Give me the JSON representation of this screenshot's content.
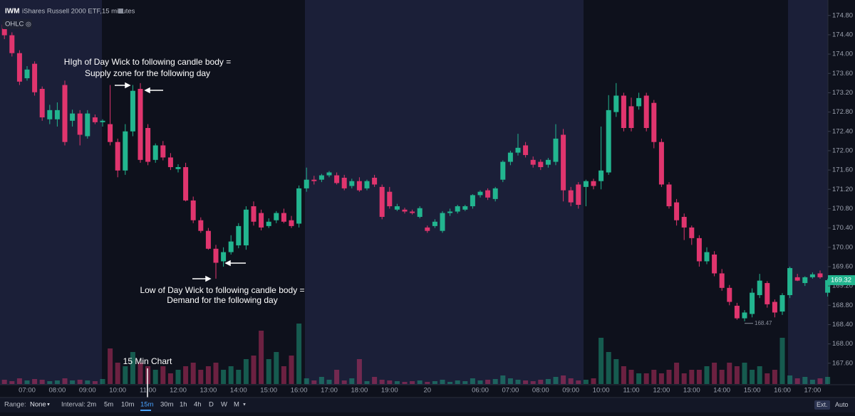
{
  "header": {
    "symbol": "IWM",
    "name": "iShares Russell 2000 ETF,15 minutes",
    "study": "OHLC"
  },
  "chart_data": {
    "type": "candlestick",
    "up_color": "#22b58f",
    "down_color": "#e0356e",
    "grid": false,
    "ylim": [
      167.17,
      175.12
    ],
    "yticks": [
      {
        "value": 167.6,
        "label": "167.60"
      },
      {
        "value": 168,
        "label": "168.00"
      },
      {
        "value": 168.4,
        "label": "168.40"
      },
      {
        "value": 168.8,
        "label": "168.80"
      },
      {
        "value": 169.2,
        "label": "169.20"
      },
      {
        "value": 169.6,
        "label": "169.60"
      },
      {
        "value": 170,
        "label": "170.00"
      },
      {
        "value": 170.4,
        "label": "170.40"
      },
      {
        "value": 170.8,
        "label": "170.80"
      },
      {
        "value": 171.2,
        "label": "171.20"
      },
      {
        "value": 171.6,
        "label": "171.60"
      },
      {
        "value": 172,
        "label": "172.00"
      },
      {
        "value": 172.4,
        "label": "172.40"
      },
      {
        "value": 172.8,
        "label": "172.80"
      },
      {
        "value": 173.2,
        "label": "173.20"
      },
      {
        "value": 173.6,
        "label": "173.60"
      },
      {
        "value": 174,
        "label": "174.00"
      },
      {
        "value": 174.4,
        "label": "174.40"
      },
      {
        "value": 174.8,
        "label": "174.80"
      }
    ],
    "categories": [
      null,
      null,
      null,
      "07:00",
      null,
      null,
      null,
      "08:00",
      null,
      null,
      null,
      "09:00",
      null,
      null,
      null,
      "10:00",
      null,
      null,
      null,
      "11:00",
      null,
      null,
      null,
      "12:00",
      null,
      null,
      null,
      "13:00",
      null,
      null,
      null,
      "14:00",
      null,
      null,
      null,
      "15:00",
      null,
      null,
      null,
      "16:00",
      null,
      null,
      null,
      "17:00",
      null,
      null,
      null,
      "18:00",
      null,
      null,
      null,
      "19:00",
      null,
      null,
      null,
      null,
      "20",
      null,
      null,
      null,
      null,
      null,
      null,
      "06:00",
      null,
      null,
      null,
      "07:00",
      null,
      null,
      null,
      "08:00",
      null,
      null,
      null,
      "09:00",
      null,
      null,
      null,
      "10:00",
      null,
      null,
      null,
      "11:00",
      null,
      null,
      null,
      "12:00",
      null,
      null,
      null,
      "13:00",
      null,
      null,
      null,
      "14:00",
      null,
      null,
      null,
      "15:00",
      null,
      null,
      null,
      "16:00",
      null,
      null,
      null,
      "17:00",
      null,
      null
    ],
    "open": [
      174.61,
      174.39,
      174.02,
      173.5,
      173.8,
      173.28,
      172.65,
      172.65,
      173.36,
      172.62,
      172.77,
      172.3,
      172.69,
      172.59,
      172.55,
      172.18,
      171.59,
      172.4,
      173.28,
      172.47,
      171.81,
      172.11,
      171.86,
      171.62,
      171.66,
      170.97,
      170.56,
      170.34,
      169.97,
      169.71,
      169.9,
      170.04,
      170.04,
      170.85,
      170.71,
      170.44,
      170.56,
      170.71,
      170.56,
      170.49,
      171.22,
      171.4,
      171.4,
      171.49,
      171.49,
      171.44,
      171.27,
      171.37,
      171.22,
      171.44,
      171.25,
      171.15,
      170.78,
      170.78,
      170.74,
      170.63,
      170.41,
      170.44,
      170.34,
      170.71,
      170.74,
      170.78,
      170.85,
      171.08,
      171.18,
      171,
      171.4,
      171.77,
      171.96,
      172.11,
      171.81,
      171.77,
      171.71,
      171.77,
      172.33,
      171.18,
      171.3,
      171.25,
      171.37,
      171.37,
      171.55,
      172.8,
      173.14,
      172.92,
      172.92,
      173.14,
      172.99,
      172.18,
      171.3,
      170.93,
      170.63,
      170.41,
      170.19,
      169.71,
      169.85,
      169.46,
      169.16,
      168.79,
      168.53,
      168.62,
      169.01,
      169.26,
      168.87,
      168.67,
      169.01,
      169.38,
      169.26,
      169.38,
      169.46,
      169.06
    ],
    "high": [
      174.68,
      174.45,
      174.08,
      173.75,
      173.85,
      173.33,
      172.95,
      173,
      173.45,
      172.85,
      172.84,
      172.84,
      172.75,
      172.65,
      173.36,
      172.25,
      172.55,
      173.36,
      173.4,
      172.55,
      172.15,
      172.2,
      171.95,
      171.72,
      171.75,
      171.05,
      170.62,
      170.4,
      170.05,
      170,
      170.25,
      170.5,
      170.85,
      170.95,
      170.78,
      170.6,
      170.75,
      170.8,
      170.65,
      171.28,
      171.65,
      171.48,
      171.52,
      171.58,
      171.55,
      171.5,
      171.42,
      171.45,
      171.4,
      171.5,
      171.3,
      171.25,
      170.9,
      170.82,
      170.78,
      170.85,
      170.45,
      170.58,
      170.75,
      170.8,
      170.88,
      170.88,
      171.1,
      171.18,
      171.22,
      171.25,
      171.8,
      172,
      172.35,
      172.18,
      171.88,
      171.82,
      171.85,
      172.55,
      172.45,
      171.25,
      171.35,
      171.4,
      171.42,
      172.5,
      173.15,
      173.4,
      173.2,
      173.1,
      173.2,
      173.2,
      173.05,
      172.25,
      171.35,
      171,
      170.7,
      170.45,
      170.25,
      170,
      169.92,
      169.55,
      169.22,
      168.85,
      168.7,
      169.15,
      169.45,
      169.3,
      168.92,
      169.05,
      169.6,
      169.45,
      169.4,
      169.48,
      169.52,
      169.35
    ],
    "low": [
      174.31,
      173.95,
      173.36,
      173.45,
      173.14,
      172.62,
      172.55,
      172.5,
      172.11,
      172.5,
      172.11,
      172.25,
      172.55,
      172.5,
      172.11,
      171.45,
      171.5,
      172.3,
      171.75,
      171.7,
      171.75,
      171.8,
      171.6,
      171.55,
      170.95,
      170.5,
      170.3,
      169.95,
      169.35,
      169.6,
      169.85,
      169.98,
      169.95,
      170.45,
      170.35,
      170.4,
      170.5,
      170.5,
      170.4,
      170.41,
      171.15,
      171.3,
      171.35,
      171.45,
      171.3,
      171.18,
      171.22,
      171.15,
      171.18,
      171.25,
      170.58,
      170.8,
      170.75,
      170.7,
      170.68,
      170.6,
      170.3,
      170.4,
      170.3,
      170.65,
      170.7,
      170.75,
      170.8,
      171.03,
      170.98,
      170.95,
      171.35,
      171.7,
      171.9,
      171.86,
      171.65,
      171.6,
      171.65,
      171.7,
      170.95,
      170.85,
      170.8,
      170.85,
      171.2,
      171.2,
      171.5,
      172.7,
      172.4,
      172.4,
      172.85,
      172.4,
      172.05,
      171.25,
      170.8,
      170.45,
      170.15,
      170.05,
      169.6,
      169.65,
      169.4,
      169.1,
      168.8,
      168.5,
      168.47,
      168.55,
      168.95,
      168.75,
      168.55,
      168.6,
      168.95,
      169.3,
      169.2,
      169.35,
      169.35,
      168.98
    ],
    "close": [
      174.39,
      174.02,
      173.43,
      173.68,
      173.21,
      172.69,
      172.84,
      172.84,
      172.18,
      172.77,
      172.33,
      172.77,
      172.59,
      172.62,
      172.18,
      171.59,
      172.4,
      173.24,
      171.81,
      171.77,
      172.11,
      171.86,
      171.66,
      171.66,
      170.97,
      170.56,
      170.34,
      169.97,
      169.68,
      169.9,
      170.12,
      170.44,
      170.78,
      170.53,
      170.41,
      170.53,
      170.71,
      170.53,
      170.44,
      171.22,
      171.4,
      171.37,
      171.49,
      171.55,
      171.33,
      171.22,
      171.37,
      171.18,
      171.37,
      171.3,
      170.63,
      170.85,
      170.85,
      170.74,
      170.71,
      170.81,
      170.34,
      170.53,
      170.71,
      170.74,
      170.85,
      170.85,
      171.08,
      171.15,
      171.03,
      171.22,
      171.77,
      171.96,
      172.06,
      171.91,
      171.71,
      171.66,
      171.81,
      172.25,
      171.18,
      170.93,
      170.88,
      171.37,
      171.27,
      171.59,
      172.84,
      173.14,
      172.47,
      172.47,
      173.09,
      172.47,
      172.18,
      171.3,
      170.85,
      170.56,
      170.41,
      170.19,
      169.71,
      169.9,
      169.46,
      169.16,
      168.87,
      168.53,
      168.65,
      169.06,
      169.31,
      168.82,
      168.65,
      169.01,
      169.57,
      169.31,
      169.38,
      169.44,
      169.38,
      169.32
    ],
    "volume_lim": [
      0,
      100
    ],
    "volume": [
      6,
      4,
      8,
      5,
      7,
      6,
      4,
      5,
      8,
      5,
      6,
      5,
      4,
      7,
      50,
      30,
      25,
      45,
      30,
      25,
      20,
      25,
      15,
      20,
      25,
      30,
      20,
      25,
      30,
      20,
      25,
      20,
      35,
      40,
      75,
      35,
      45,
      25,
      40,
      85,
      8,
      5,
      10,
      6,
      20,
      5,
      8,
      35,
      4,
      10,
      6,
      5,
      4,
      3,
      4,
      5,
      3,
      4,
      6,
      3,
      5,
      4,
      8,
      5,
      6,
      7,
      12,
      8,
      6,
      5,
      4,
      6,
      7,
      10,
      12,
      8,
      5,
      6,
      8,
      65,
      45,
      35,
      25,
      20,
      15,
      15,
      20,
      15,
      20,
      30,
      15,
      20,
      20,
      25,
      30,
      20,
      30,
      25,
      30,
      20,
      25,
      15,
      20,
      65,
      12,
      8,
      10,
      6,
      8,
      10
    ],
    "last_price": {
      "value": 169.32,
      "label": "169.32"
    },
    "low_label": {
      "value": 168.47,
      "label": "168.47"
    },
    "annotations": {
      "supply": [
        "HIgh of Day Wick to following candle body =",
        "Supply zone for the following day"
      ],
      "demand": [
        "Low of Day Wick to following candle body =",
        "Demand for the following day"
      ],
      "interval_note": "15 Min Chart"
    }
  },
  "toolbar": {
    "range_label": "Range:",
    "range_value": "None",
    "interval_label": "Interval:",
    "intervals": [
      "2m",
      "5m",
      "10m",
      "15m",
      "30m",
      "1h",
      "4h",
      "D",
      "W",
      "M"
    ],
    "active_interval": 3,
    "right": [
      "Ext.",
      "Auto"
    ]
  }
}
